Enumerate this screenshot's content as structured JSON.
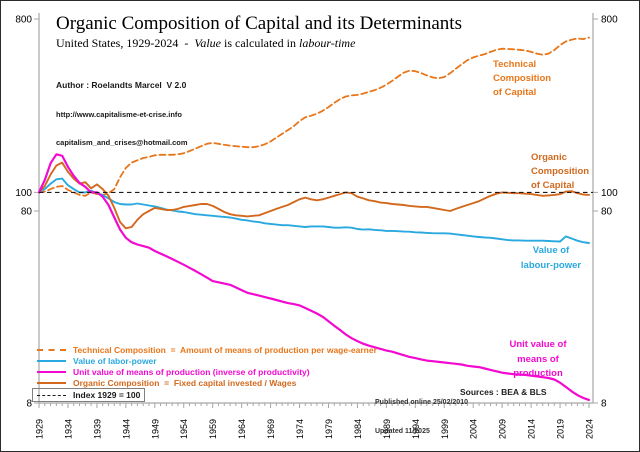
{
  "header": {
    "title": "Organic Composition of Capital and its Determinants",
    "subtitle": {
      "prefix": "United States, 1929-2024  -  ",
      "italic1": "Value",
      "mid": " is calculated in ",
      "italic2": "labour-time"
    },
    "author_line1": "Author : Roelandts Marcel  V 2.0",
    "author_line2": "http://www.capitalisme-et-crise.info",
    "author_line3": "capitalism_and_crises@hotmail.com"
  },
  "footnotes": {
    "published": "Published online 25/02/2010",
    "updated": "Updated 11/2025",
    "sources": "Sources : BEA & BLS"
  },
  "curve_labels": {
    "technical": {
      "lines": [
        "Technical",
        "Composition",
        "of Capital"
      ],
      "color": "#E8761A"
    },
    "organic": {
      "lines": [
        "Organic",
        "Composition",
        "of Capital"
      ],
      "color": "#D2691E"
    },
    "labour_power": {
      "lines": [
        "Value of",
        "labour-power"
      ],
      "color": "#29A9DF"
    },
    "unit_value": {
      "lines": [
        "Unit value of",
        "means of",
        "production"
      ],
      "color": "#F20AD0"
    }
  },
  "legend": {
    "items": [
      {
        "label": "Technical Composition  =  Amount of means of production per wage-earner",
        "color": "#E8761A",
        "style": "dashed",
        "boxed": false
      },
      {
        "label": "Value of labor-power",
        "color": "#29A9DF",
        "style": "solid",
        "boxed": false
      },
      {
        "label": "Unit value of means of production (inverse of productivity)",
        "color": "#F20AD0",
        "style": "solid",
        "boxed": false
      },
      {
        "label": "Organic Composition  =  Fixed capital invested / Wages",
        "color": "#D2691E",
        "style": "solid",
        "boxed": false
      },
      {
        "label": "Index 1929 = 100",
        "color": "#1a1a1a",
        "style": "dashed",
        "boxed": true
      }
    ]
  },
  "axes": {
    "y_scale": "log",
    "y_min": 8,
    "y_max": 800,
    "y_ticks": [
      800,
      100,
      80,
      8
    ],
    "x_min": 1929,
    "x_max": 2024,
    "x_label_step": 5,
    "x_tick_labels": [
      "1929",
      "1934",
      "1939",
      "1944",
      "1949",
      "1954",
      "1959",
      "1964",
      "1969",
      "1974",
      "1979",
      "1984",
      "1989",
      "1994",
      "1999",
      "2004",
      "2009",
      "2014",
      "2019",
      "2024"
    ],
    "reference": {
      "label": "Index 1929 = 100",
      "value": 100
    }
  },
  "chart_data": {
    "type": "line",
    "title": "Organic Composition of Capital and its Determinants",
    "subtitle": "United States, 1929-2024 - Value is calculated in labour-time",
    "y_scale": "log",
    "ylim": [
      8,
      800
    ],
    "xlim": [
      1929,
      2024
    ],
    "legend_position": "bottom-left",
    "grid": false,
    "x": [
      1929,
      1930,
      1931,
      1932,
      1933,
      1934,
      1935,
      1936,
      1937,
      1938,
      1939,
      1940,
      1941,
      1942,
      1943,
      1944,
      1945,
      1946,
      1947,
      1948,
      1949,
      1950,
      1951,
      1952,
      1953,
      1954,
      1955,
      1956,
      1957,
      1958,
      1959,
      1960,
      1961,
      1962,
      1963,
      1964,
      1965,
      1966,
      1967,
      1968,
      1969,
      1970,
      1971,
      1972,
      1973,
      1974,
      1975,
      1976,
      1977,
      1978,
      1979,
      1980,
      1981,
      1982,
      1983,
      1984,
      1985,
      1986,
      1987,
      1988,
      1989,
      1990,
      1991,
      1992,
      1993,
      1994,
      1995,
      1996,
      1997,
      1998,
      1999,
      2000,
      2001,
      2002,
      2003,
      2004,
      2005,
      2006,
      2007,
      2008,
      2009,
      2010,
      2011,
      2012,
      2013,
      2014,
      2015,
      2016,
      2017,
      2018,
      2019,
      2020,
      2021,
      2022,
      2023,
      2024
    ],
    "series": [
      {
        "id": "tcc",
        "name": "Technical Composition of Capital",
        "color": "#E8761A",
        "style": "dashed",
        "width": 1.8,
        "values": [
          100,
          101,
          104,
          107,
          108,
          103,
          100,
          97,
          96,
          100,
          98,
          97,
          99,
          104,
          120,
          134,
          143,
          147,
          151,
          153,
          156,
          157,
          157,
          157,
          158,
          160,
          164,
          169,
          174,
          179,
          181,
          179,
          177,
          175,
          174,
          173,
          172,
          172,
          174,
          178,
          184,
          193,
          202,
          211,
          221,
          235,
          246,
          251,
          257,
          266,
          278,
          293,
          306,
          316,
          320,
          322,
          327,
          334,
          341,
          351,
          364,
          381,
          401,
          420,
          431,
          428,
          418,
          407,
          397,
          393,
          399,
          417,
          441,
          464,
          488,
          505,
          515,
          525,
          539,
          553,
          560,
          558,
          556,
          553,
          548,
          539,
          528,
          521,
          528,
          551,
          585,
          611,
          624,
          634,
          629,
          640
        ]
      },
      {
        "id": "vlp",
        "name": "Value of labour-power",
        "color": "#29A9DF",
        "style": "solid",
        "width": 1.9,
        "values": [
          100,
          104,
          111,
          117,
          118,
          109,
          104,
          100,
          100,
          102,
          99,
          97,
          93,
          89,
          87,
          86.5,
          86.5,
          87.5,
          86.5,
          85.5,
          84.5,
          83,
          81.5,
          80.5,
          79.5,
          79,
          78,
          77,
          76.5,
          76,
          75.5,
          75,
          74.5,
          74,
          73,
          72,
          71.5,
          70.5,
          70,
          69,
          68.5,
          68,
          67.5,
          67.5,
          67,
          66.5,
          66,
          66.5,
          66.5,
          66.5,
          66,
          65.5,
          65.5,
          65.8,
          65.5,
          64.5,
          64,
          64.2,
          63.8,
          63.5,
          63,
          63,
          62.8,
          62.5,
          62.4,
          62,
          61.8,
          61.5,
          61.3,
          61.2,
          61.2,
          61,
          60.5,
          60,
          59.5,
          59,
          58.6,
          58.2,
          58,
          57.5,
          57,
          56.4,
          56.2,
          56.2,
          56,
          56,
          56,
          56,
          55.8,
          55.6,
          55.5,
          59,
          57.5,
          56,
          55,
          54.5
        ]
      },
      {
        "id": "occ",
        "name": "Organic Composition of Capital",
        "color": "#D2691E",
        "style": "solid",
        "width": 1.9,
        "values": [
          100,
          108,
          124,
          138,
          143,
          128,
          118,
          111,
          113,
          105,
          110,
          104,
          96,
          83,
          70,
          65,
          66,
          72,
          77,
          80,
          83,
          82,
          81,
          81,
          82,
          84,
          85,
          86,
          87,
          87,
          85,
          82,
          79,
          77,
          76,
          75.5,
          75,
          75.5,
          76,
          78,
          80,
          82,
          84,
          86,
          89,
          92,
          94,
          92,
          91,
          92,
          94,
          96,
          98,
          100,
          99,
          95,
          93,
          91,
          90,
          88.5,
          88,
          87,
          86.5,
          86,
          85,
          84.5,
          84,
          84,
          83,
          82,
          81,
          80,
          82,
          84,
          86,
          88,
          90,
          93,
          96,
          98.5,
          100,
          99.5,
          99,
          99,
          98.5,
          98,
          97,
          96,
          96.5,
          97,
          98,
          101,
          101.5,
          99,
          97.5,
          97
        ]
      },
      {
        "id": "uv",
        "name": "Unit value of means of production",
        "color": "#F20AD0",
        "style": "solid",
        "width": 2.2,
        "values": [
          100,
          116,
          142,
          158,
          155,
          136,
          122,
          112,
          107,
          100,
          100,
          95,
          86,
          74,
          64,
          58,
          55,
          53.5,
          52.5,
          51.5,
          49.5,
          48,
          46.5,
          45,
          43.5,
          42,
          40.5,
          39,
          37.5,
          36,
          34.5,
          34,
          33.5,
          33,
          32,
          31,
          30,
          29.5,
          29,
          28.5,
          28,
          27.5,
          27,
          26.5,
          26.2,
          25.8,
          25,
          24.2,
          23.4,
          22.5,
          21.3,
          20.2,
          19.2,
          18.2,
          17.4,
          16.8,
          16.3,
          15.9,
          15.6,
          15.3,
          15,
          14.8,
          14.5,
          14.2,
          13.9,
          13.7,
          13.5,
          13.3,
          13.2,
          13.1,
          13,
          12.9,
          12.8,
          12.7,
          12.5,
          12.4,
          12.3,
          12.1,
          11.9,
          11.7,
          11.5,
          11.4,
          11.3,
          11.25,
          11.2,
          11.1,
          11,
          10.9,
          10.8,
          10.6,
          10.2,
          9.7,
          9.2,
          8.8,
          8.5,
          8.3
        ]
      }
    ],
    "reference_line": {
      "label": "Index 1929 = 100",
      "value": 100,
      "color": "#1a1a1a",
      "style": "dashed"
    }
  }
}
